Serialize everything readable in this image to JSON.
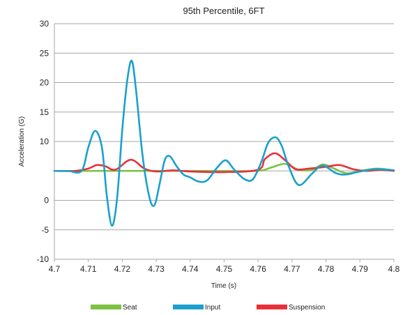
{
  "chart_data": {
    "type": "line",
    "title": "95th Percentile, 6FT",
    "xlabel": "Time (s)",
    "ylabel": "Acceleration (G)",
    "xlim": [
      4.7,
      4.8
    ],
    "ylim": [
      -10,
      30
    ],
    "x_ticks": [
      4.7,
      4.71,
      4.72,
      4.73,
      4.74,
      4.75,
      4.76,
      4.77,
      4.78,
      4.79,
      4.8
    ],
    "x_tick_labels": [
      "4.7",
      "4.71",
      "4.72",
      "4.73",
      "4.74",
      "4.75",
      "4.76",
      "4.77",
      "4.78",
      "4.79",
      "4.8"
    ],
    "y_ticks": [
      -10,
      -5,
      0,
      5,
      10,
      15,
      20,
      25,
      30
    ],
    "y_tick_labels": [
      "-10",
      "-5",
      "0",
      "",
      "10",
      "15",
      "20",
      "25",
      "30"
    ],
    "grid": "horizontal",
    "legend_position": "bottom",
    "series": [
      {
        "name": "Seat",
        "color": "#7dc242",
        "x": [
          4.7,
          4.71,
          4.72,
          4.73,
          4.74,
          4.75,
          4.76,
          4.764,
          4.768,
          4.772,
          4.776,
          4.779,
          4.782,
          4.786,
          4.79,
          4.795,
          4.8
        ],
        "y": [
          5.0,
          5.0,
          5.0,
          5.0,
          5.0,
          5.0,
          5.0,
          5.6,
          6.2,
          5.2,
          5.2,
          6.1,
          5.5,
          4.6,
          5.0,
          5.4,
          5.1
        ]
      },
      {
        "name": "Input",
        "color": "#1aa0cc",
        "x": [
          4.7,
          4.704,
          4.708,
          4.71,
          4.712,
          4.714,
          4.7155,
          4.717,
          4.7185,
          4.72,
          4.7215,
          4.7228,
          4.724,
          4.726,
          4.728,
          4.7295,
          4.731,
          4.7325,
          4.734,
          4.736,
          4.738,
          4.74,
          4.7425,
          4.745,
          4.748,
          4.7505,
          4.753,
          4.756,
          4.7585,
          4.761,
          4.763,
          4.7652,
          4.767,
          4.769,
          4.772,
          4.776,
          4.779,
          4.783,
          4.786,
          4.79,
          4.795,
          4.8
        ],
        "y": [
          5.0,
          5.0,
          5.0,
          9.0,
          11.8,
          9.0,
          0.5,
          -4.3,
          0.5,
          12.0,
          20.5,
          23.7,
          19.0,
          7.5,
          0.5,
          -0.8,
          2.8,
          6.8,
          7.5,
          5.8,
          4.4,
          3.9,
          3.2,
          3.4,
          5.6,
          6.8,
          5.2,
          3.6,
          3.6,
          6.6,
          9.8,
          10.7,
          9.2,
          5.8,
          2.6,
          4.6,
          5.9,
          4.6,
          4.4,
          4.9,
          5.3,
          5.1
        ]
      },
      {
        "name": "Suspension",
        "color": "#e8303a",
        "x": [
          4.7,
          4.706,
          4.71,
          4.7125,
          4.715,
          4.718,
          4.7225,
          4.7265,
          4.73,
          4.735,
          4.74,
          4.75,
          4.76,
          4.762,
          4.765,
          4.768,
          4.771,
          4.775,
          4.78,
          4.784,
          4.788,
          4.792,
          4.796,
          4.8
        ],
        "y": [
          5.0,
          5.0,
          5.4,
          6.0,
          5.8,
          5.2,
          6.9,
          5.4,
          4.9,
          5.1,
          4.9,
          4.8,
          5.2,
          7.0,
          8.0,
          6.8,
          5.3,
          5.4,
          5.7,
          6.0,
          5.3,
          5.0,
          5.2,
          5.0
        ]
      }
    ]
  }
}
